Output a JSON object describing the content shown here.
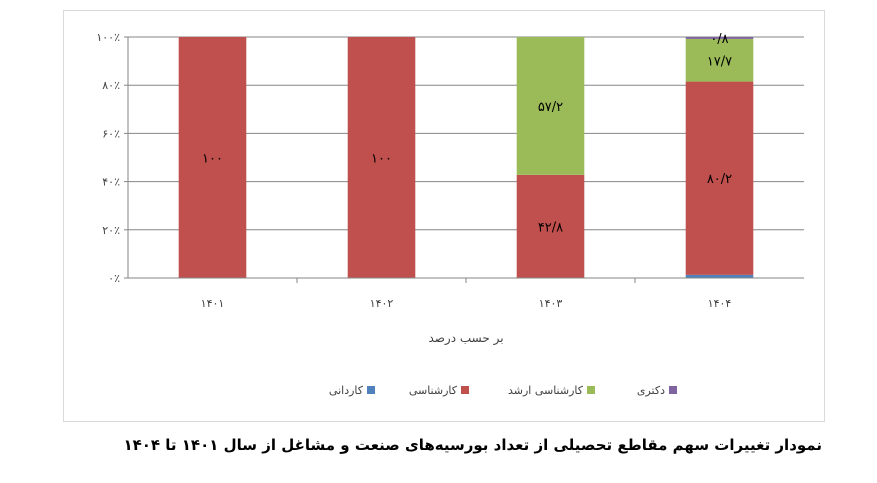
{
  "caption": "نمودار تغییرات سهم مقاطع تحصیلی از تعداد بورسیه‌های صنعت و مشاغل از سال ۱۴۰۱ تا ۱۴۰۴",
  "chart_data": {
    "type": "bar",
    "stacked": true,
    "percent_stacked": true,
    "categories": [
      "۱۴۰۱",
      "۱۴۰۲",
      "۱۴۰۳",
      "۱۴۰۴"
    ],
    "series": [
      {
        "name": "کاردانی",
        "color": "#4f81bd",
        "values": [
          0,
          0,
          0,
          1.3
        ],
        "labels": [
          "",
          "",
          "",
          ""
        ]
      },
      {
        "name": "کارشناسی",
        "color": "#c0504d",
        "values": [
          100,
          100,
          42.8,
          80.2
        ],
        "labels": [
          "۱۰۰",
          "۱۰۰",
          "۴۲/۸",
          "۸۰/۲"
        ]
      },
      {
        "name": "کارشناسی ارشد",
        "color": "#9bbb59",
        "values": [
          0,
          0,
          57.2,
          17.7
        ],
        "labels": [
          "",
          "",
          "۵۷/۲",
          "۱۷/۷"
        ]
      },
      {
        "name": "دکتری",
        "color": "#8064a2",
        "values": [
          0,
          0,
          0,
          0.8
        ],
        "labels": [
          "",
          "",
          "",
          "۰/۸"
        ]
      }
    ],
    "xlabel": "بر حسب درصد",
    "ylabel": "",
    "ylim": [
      0,
      100
    ],
    "yticks": [
      {
        "value": 0,
        "label": "۰٪"
      },
      {
        "value": 20,
        "label": "۲۰٪"
      },
      {
        "value": 40,
        "label": "۴۰٪"
      },
      {
        "value": 60,
        "label": "۶۰٪"
      },
      {
        "value": 80,
        "label": "۸۰٪"
      },
      {
        "value": 100,
        "label": "۱۰۰٪"
      }
    ],
    "grid": true,
    "legend_position": "bottom",
    "legend_order": [
      "دکتری",
      "کارشناسی ارشد",
      "کارشناسی",
      "کاردانی"
    ]
  }
}
